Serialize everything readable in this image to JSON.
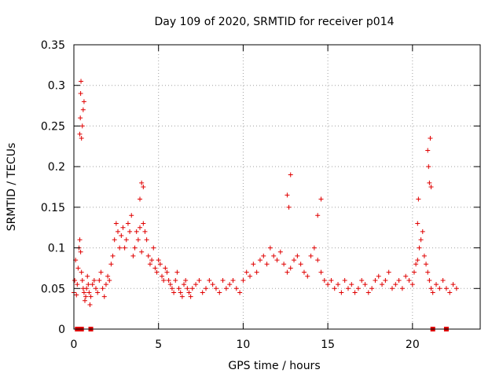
{
  "chart_data": {
    "type": "scatter",
    "title": "Day 109 of 2020, SRMTID for receiver p014",
    "xlabel": "GPS time / hours",
    "ylabel": "SRMTID / TECUs",
    "xlim": [
      0,
      24
    ],
    "ylim": [
      0,
      0.35
    ],
    "xticks": [
      0,
      5,
      10,
      15,
      20
    ],
    "yticks": [
      0,
      0.05,
      0.1,
      0.15,
      0.2,
      0.25,
      0.3,
      0.35
    ],
    "xtick_labels": [
      "0",
      "5",
      "10",
      "15",
      "20"
    ],
    "ytick_labels": [
      "0",
      "0.05",
      "0.1",
      "0.15",
      "0.2",
      "0.25",
      "0.3",
      "0.35"
    ],
    "grid": true,
    "marker": "+",
    "color": "#e00000",
    "series": [
      {
        "name": "SRMTID",
        "x": [
          0.0,
          0.05,
          0.1,
          0.15,
          0.2,
          0.25,
          0.3,
          0.35,
          0.4,
          0.45,
          0.5,
          0.55,
          0.6,
          0.65,
          0.7,
          0.75,
          0.8,
          0.85,
          0.9,
          0.95,
          1.0,
          1.1,
          1.2,
          1.3,
          1.4,
          1.5,
          1.6,
          1.7,
          1.8,
          1.9,
          2.0,
          2.1,
          2.2,
          2.3,
          2.4,
          2.5,
          2.6,
          2.7,
          2.8,
          2.9,
          3.0,
          3.1,
          3.2,
          3.3,
          3.4,
          3.5,
          3.6,
          3.7,
          3.8,
          3.9,
          4.0,
          4.1,
          4.2,
          4.3,
          4.4,
          4.5,
          4.6,
          4.7,
          4.8,
          4.9,
          5.0,
          5.1,
          5.2,
          5.3,
          5.4,
          5.5,
          5.6,
          5.7,
          5.8,
          5.9,
          6.0,
          6.1,
          6.2,
          6.3,
          6.4,
          6.5,
          6.6,
          6.7,
          6.8,
          6.9,
          7.0,
          7.2,
          7.4,
          7.6,
          7.8,
          8.0,
          8.2,
          8.4,
          8.6,
          8.8,
          9.0,
          9.2,
          9.4,
          9.6,
          9.8,
          10.0,
          10.2,
          10.4,
          10.6,
          10.8,
          11.0,
          11.2,
          11.4,
          11.6,
          11.8,
          12.0,
          12.2,
          12.4,
          12.6,
          12.8,
          13.0,
          13.2,
          13.4,
          13.6,
          13.8,
          14.0,
          14.2,
          14.4,
          14.6,
          14.8,
          15.0,
          15.2,
          15.4,
          15.6,
          15.8,
          16.0,
          16.2,
          16.4,
          16.6,
          16.8,
          17.0,
          17.2,
          17.4,
          17.6,
          17.8,
          18.0,
          18.2,
          18.4,
          18.6,
          18.8,
          19.0,
          19.2,
          19.4,
          19.6,
          19.8,
          20.0,
          20.1,
          20.2,
          20.3,
          20.4,
          20.5,
          20.6,
          20.7,
          20.8,
          20.9,
          21.0,
          21.1,
          21.2,
          21.4,
          21.6,
          21.8,
          22.0,
          22.2,
          22.4,
          22.6,
          0.35,
          0.38,
          0.4,
          0.42,
          0.45,
          0.5,
          0.55,
          0.6,
          3.9,
          4.0,
          4.1,
          12.6,
          12.7,
          12.8,
          14.4,
          14.6,
          20.9,
          20.95,
          21.0,
          21.05,
          21.1,
          20.3,
          20.35
        ],
        "y": [
          0.045,
          0.06,
          0.085,
          0.042,
          0.055,
          0.075,
          0.1,
          0.11,
          0.095,
          0.07,
          0.06,
          0.05,
          0.045,
          0.035,
          0.04,
          0.05,
          0.065,
          0.055,
          0.045,
          0.03,
          0.04,
          0.055,
          0.06,
          0.05,
          0.045,
          0.06,
          0.07,
          0.05,
          0.04,
          0.055,
          0.065,
          0.06,
          0.08,
          0.09,
          0.11,
          0.13,
          0.12,
          0.1,
          0.115,
          0.125,
          0.1,
          0.11,
          0.13,
          0.12,
          0.14,
          0.09,
          0.1,
          0.12,
          0.11,
          0.125,
          0.095,
          0.13,
          0.12,
          0.11,
          0.09,
          0.08,
          0.085,
          0.1,
          0.075,
          0.07,
          0.085,
          0.08,
          0.065,
          0.06,
          0.075,
          0.07,
          0.06,
          0.055,
          0.05,
          0.045,
          0.06,
          0.07,
          0.05,
          0.045,
          0.04,
          0.055,
          0.06,
          0.05,
          0.045,
          0.04,
          0.05,
          0.055,
          0.06,
          0.045,
          0.05,
          0.06,
          0.055,
          0.05,
          0.045,
          0.06,
          0.05,
          0.055,
          0.06,
          0.05,
          0.045,
          0.06,
          0.07,
          0.065,
          0.08,
          0.07,
          0.085,
          0.09,
          0.08,
          0.1,
          0.09,
          0.085,
          0.095,
          0.08,
          0.07,
          0.075,
          0.085,
          0.09,
          0.08,
          0.07,
          0.065,
          0.09,
          0.1,
          0.085,
          0.07,
          0.06,
          0.055,
          0.06,
          0.05,
          0.055,
          0.045,
          0.06,
          0.05,
          0.055,
          0.045,
          0.05,
          0.06,
          0.055,
          0.045,
          0.05,
          0.06,
          0.065,
          0.055,
          0.06,
          0.07,
          0.05,
          0.055,
          0.06,
          0.05,
          0.065,
          0.06,
          0.055,
          0.07,
          0.08,
          0.085,
          0.1,
          0.11,
          0.12,
          0.09,
          0.08,
          0.07,
          0.06,
          0.05,
          0.045,
          0.055,
          0.05,
          0.06,
          0.05,
          0.045,
          0.055,
          0.05,
          0.24,
          0.26,
          0.29,
          0.305,
          0.235,
          0.25,
          0.27,
          0.28,
          0.16,
          0.18,
          0.175,
          0.165,
          0.15,
          0.19,
          0.14,
          0.16,
          0.22,
          0.2,
          0.18,
          0.235,
          0.175,
          0.13,
          0.16
        ],
        "zero_markers_x": [
          0.2,
          0.3,
          0.45,
          1.0,
          21.2,
          22.0
        ]
      }
    ]
  }
}
